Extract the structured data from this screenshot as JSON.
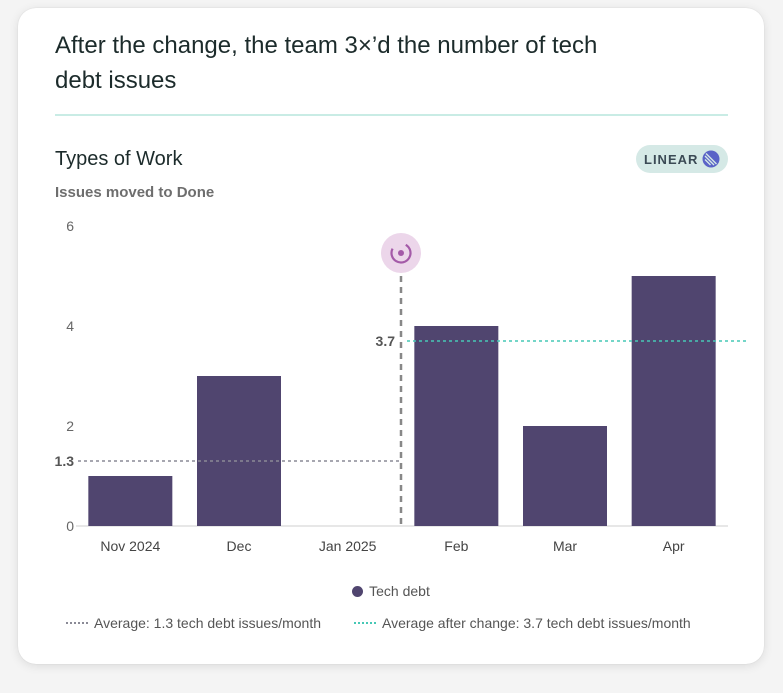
{
  "headline": "After the change, the team 3×’d the number of tech debt issues",
  "badge": {
    "label": "LINEAR",
    "icon": "linear-logo-icon"
  },
  "colors": {
    "bar": "#50456f",
    "before_avg": "#8a8a96",
    "after_avg": "#47c8b6",
    "marker": "#a45aa8",
    "divider": "#c9ece5"
  },
  "chart_data": {
    "type": "bar",
    "title": "Types of Work",
    "subtitle": "Issues moved to Done",
    "categories": [
      "Nov 2024",
      "Dec",
      "Jan 2025",
      "Feb",
      "Mar",
      "Apr"
    ],
    "series": [
      {
        "name": "Tech debt",
        "values": [
          1,
          3,
          0,
          4,
          2,
          5
        ]
      }
    ],
    "ylim": [
      0,
      6
    ],
    "yticks": [
      0,
      2,
      4,
      6
    ],
    "grid": false,
    "legend_position": "bottom",
    "change_marker": {
      "after_category": "Jan 2025",
      "icon": "change-marker-icon"
    },
    "reference_lines": [
      {
        "label": "Average: 1.3 tech debt issues/month",
        "value": 1.3,
        "value_label": "1.3",
        "from": "Nov 2024",
        "to": "Jan 2025",
        "style": "dotted",
        "color": "#8a8a96"
      },
      {
        "label": "Average after change: 3.7 tech debt issues/month",
        "value": 3.7,
        "value_label": "3.7",
        "from": "Feb",
        "to": "Apr",
        "style": "dotted",
        "color": "#47c8b6"
      }
    ]
  }
}
